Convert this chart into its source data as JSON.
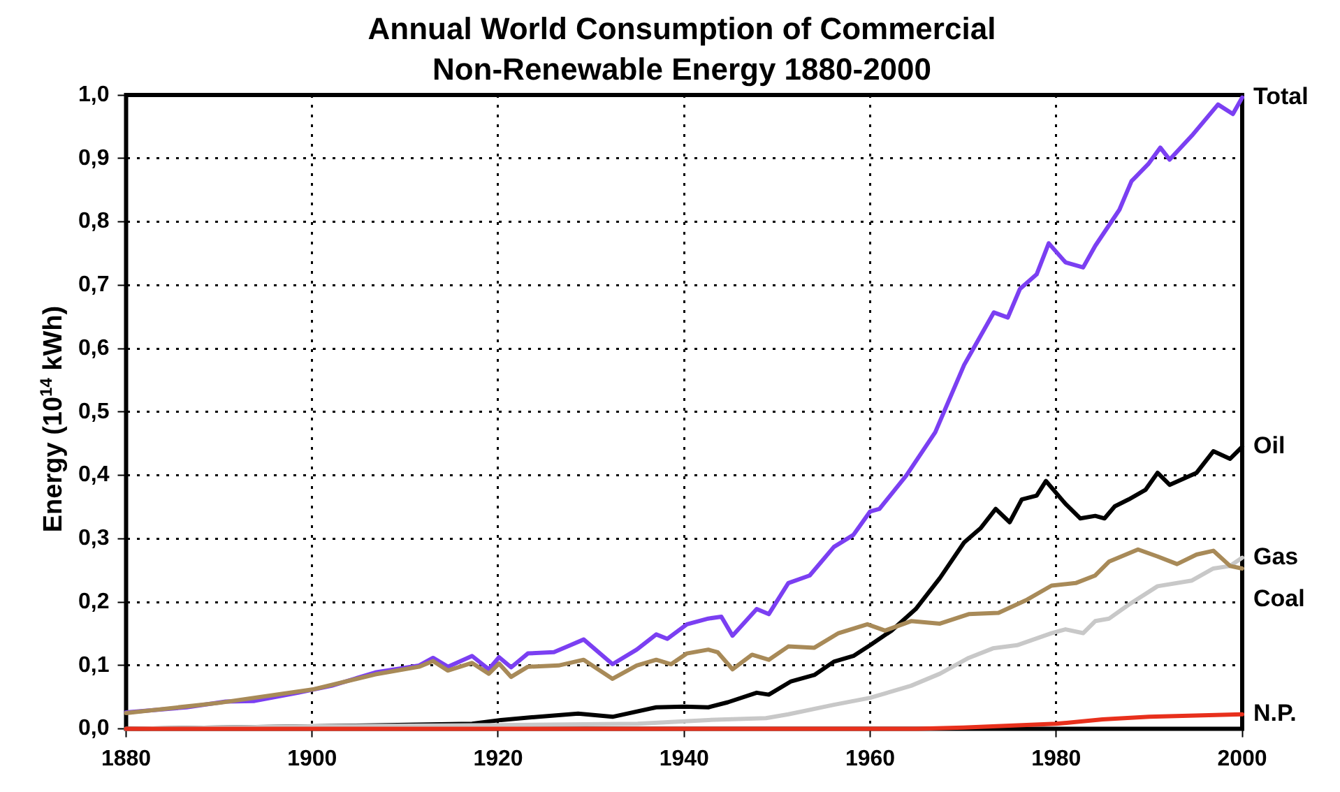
{
  "chart_data": {
    "type": "line",
    "title": "Annual World Consumption of Commercial Non-Renewable Energy 1880-2000",
    "ylabel": "Energy (10$^{14}$ kWh)",
    "xlim": [
      1880,
      2000
    ],
    "xticks": [
      1880,
      1900,
      1920,
      1940,
      1960,
      1980,
      2000
    ],
    "ylim": [
      0,
      1
    ],
    "yticks": [
      {
        "value": 0,
        "label": "0,0"
      },
      {
        "value": 0.1,
        "label": "0,1"
      },
      {
        "value": 0.2,
        "label": "0,2"
      },
      {
        "value": 0.3,
        "label": "0,3"
      },
      {
        "value": 0.4,
        "label": "0,4"
      },
      {
        "value": 0.5,
        "label": "0,5"
      },
      {
        "value": 0.6,
        "label": "0,6"
      },
      {
        "value": 0.7,
        "label": "0,7"
      },
      {
        "value": 0.8,
        "label": "0,8"
      },
      {
        "value": 0.9,
        "label": "0,9"
      },
      {
        "value": 1,
        "label": "1,0"
      }
    ],
    "grid": true,
    "legend": false,
    "marker": "none",
    "line_style": "solid",
    "series": [
      {
        "name": "Total",
        "color": "#7b3ff2",
        "x": [
          1880,
          1886.5,
          1890.7,
          1893.8,
          1898.5,
          1902.1,
          1906.8,
          1911.5,
          1913,
          1914.6,
          1917.2,
          1919,
          1920.1,
          1921.4,
          1923.2,
          1926,
          1927.6,
          1929.2,
          1932.3,
          1934.9,
          1937,
          1938.2,
          1940.3,
          1942.6,
          1944,
          1945.2,
          1947.8,
          1949.1,
          1951.2,
          1953.5,
          1956.1,
          1958.2,
          1960,
          1961,
          1963.9,
          1967,
          1970.1,
          1973.3,
          1974.8,
          1976.1,
          1977.9,
          1979.2,
          1981,
          1982.9,
          1984.2,
          1986.8,
          1988.1,
          1989.9,
          1991.2,
          1992.2,
          1994.6,
          1997.4,
          1999,
          2000
        ],
        "values": [
          0.026,
          0.034,
          0.043,
          0.044,
          0.057,
          0.068,
          0.089,
          0.1,
          0.112,
          0.098,
          0.115,
          0.094,
          0.113,
          0.097,
          0.119,
          0.121,
          0.131,
          0.141,
          0.102,
          0.125,
          0.149,
          0.142,
          0.165,
          0.174,
          0.177,
          0.147,
          0.189,
          0.181,
          0.23,
          0.242,
          0.287,
          0.306,
          0.343,
          0.347,
          0.4,
          0.468,
          0.574,
          0.657,
          0.649,
          0.694,
          0.717,
          0.766,
          0.736,
          0.728,
          0.762,
          0.819,
          0.864,
          0.891,
          0.917,
          0.898,
          0.936,
          0.985,
          0.97,
          0.996
        ]
      },
      {
        "name": "Oil",
        "color": "#000000",
        "x": [
          1880,
          1899.5,
          1917.2,
          1920.3,
          1923.4,
          1928.6,
          1932.3,
          1937,
          1940,
          1942.6,
          1944.7,
          1947.8,
          1949.1,
          1951.5,
          1954,
          1956.1,
          1958.2,
          1960,
          1962.3,
          1964.9,
          1967.5,
          1970.1,
          1971.9,
          1973.5,
          1975,
          1976.3,
          1977.9,
          1978.9,
          1981,
          1982.6,
          1984.2,
          1985.2,
          1986.3,
          1987.8,
          1989.6,
          1990.9,
          1992.2,
          1995.1,
          1996.9,
          1998.7,
          2000
        ],
        "values": [
          0,
          0.004,
          0.008,
          0.014,
          0.018,
          0.024,
          0.019,
          0.034,
          0.035,
          0.034,
          0.042,
          0.057,
          0.054,
          0.075,
          0.085,
          0.106,
          0.115,
          0.132,
          0.155,
          0.189,
          0.238,
          0.294,
          0.317,
          0.347,
          0.326,
          0.362,
          0.368,
          0.391,
          0.355,
          0.332,
          0.336,
          0.332,
          0.351,
          0.362,
          0.377,
          0.404,
          0.385,
          0.404,
          0.438,
          0.426,
          0.445
        ]
      },
      {
        "name": "Gas",
        "color": "#c8c8c8",
        "x": [
          1880,
          1900,
          1920,
          1935,
          1942.6,
          1948.8,
          1951.2,
          1956.1,
          1960,
          1964.4,
          1967.5,
          1970.6,
          1973.2,
          1975.8,
          1979.5,
          1981,
          1982.9,
          1984.2,
          1985.7,
          1987.8,
          1990.9,
          1994.6,
          1996.9,
          1998.7,
          2000
        ],
        "values": [
          0,
          0.004,
          0.006,
          0.008,
          0.014,
          0.017,
          0.023,
          0.038,
          0.049,
          0.068,
          0.087,
          0.112,
          0.127,
          0.132,
          0.151,
          0.157,
          0.151,
          0.17,
          0.174,
          0.196,
          0.225,
          0.234,
          0.253,
          0.257,
          0.27
        ]
      },
      {
        "name": "Coal",
        "color": "#a88a58",
        "x": [
          1880,
          1890,
          1900,
          1906.8,
          1911.5,
          1913,
          1914.6,
          1917.2,
          1919,
          1920.1,
          1921.4,
          1923.2,
          1926.5,
          1929.2,
          1932.3,
          1934.9,
          1937,
          1938.6,
          1940.3,
          1942.6,
          1943.6,
          1945.2,
          1947.3,
          1949.1,
          1951.2,
          1954,
          1956.6,
          1959.7,
          1961.6,
          1964.4,
          1967.5,
          1970.6,
          1973.8,
          1976.9,
          1979.5,
          1982.1,
          1984.2,
          1985.7,
          1988.8,
          1990.9,
          1993,
          1995.1,
          1996.9,
          1998.7,
          2000
        ],
        "values": [
          0.025,
          0.041,
          0.062,
          0.086,
          0.098,
          0.107,
          0.092,
          0.104,
          0.087,
          0.103,
          0.082,
          0.098,
          0.1,
          0.109,
          0.079,
          0.1,
          0.109,
          0.102,
          0.119,
          0.125,
          0.121,
          0.094,
          0.117,
          0.109,
          0.13,
          0.128,
          0.151,
          0.165,
          0.155,
          0.17,
          0.166,
          0.181,
          0.183,
          0.204,
          0.226,
          0.23,
          0.242,
          0.264,
          0.283,
          0.272,
          0.26,
          0.275,
          0.281,
          0.257,
          0.253
        ]
      },
      {
        "name": "N.P.",
        "color": "#e8301c",
        "x": [
          1880,
          1965,
          1970,
          1975,
          1980,
          1985,
          1990,
          1995,
          2000
        ],
        "values": [
          0,
          0,
          0.002,
          0.005,
          0.008,
          0.015,
          0.019,
          0.021,
          0.023
        ]
      }
    ]
  }
}
